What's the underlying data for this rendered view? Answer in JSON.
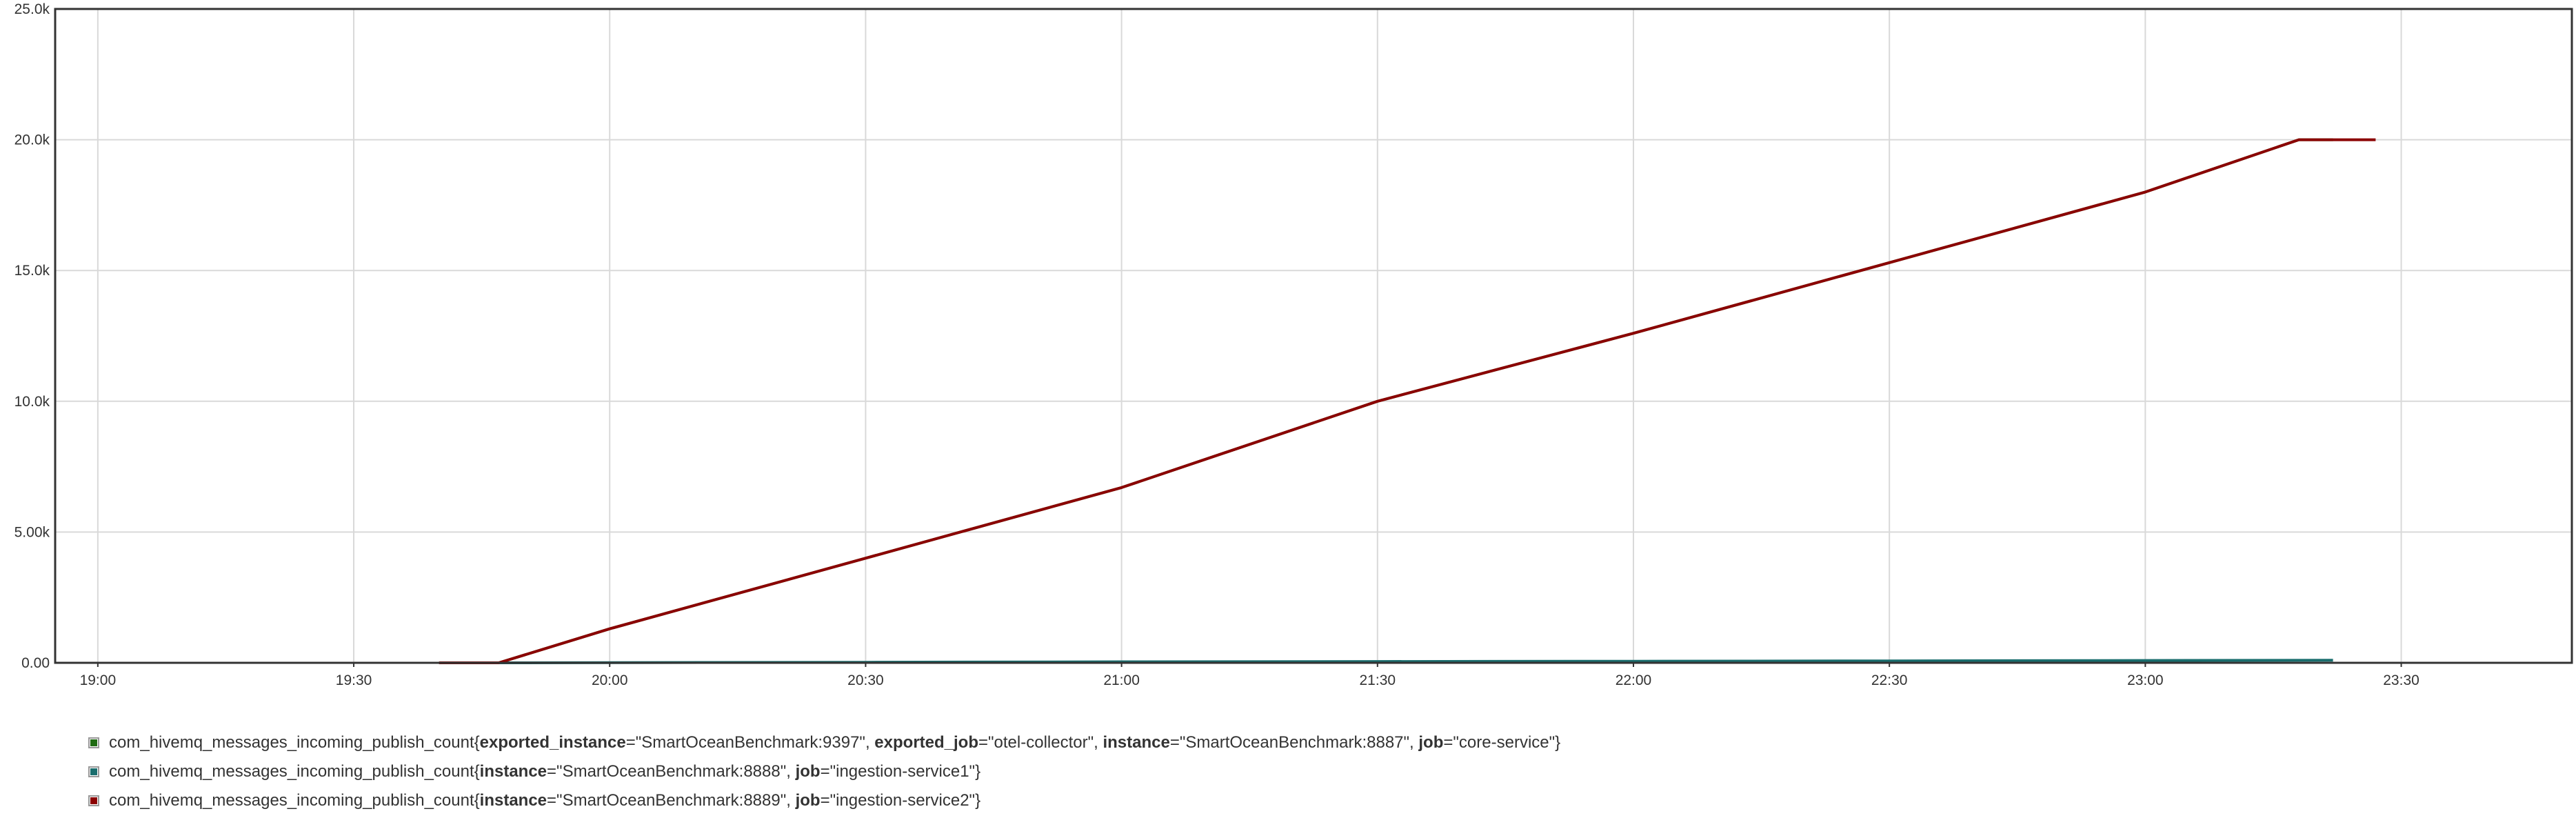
{
  "chart_data": {
    "type": "line",
    "x_ticks": [
      "19:00",
      "19:30",
      "20:00",
      "20:30",
      "21:00",
      "21:30",
      "22:00",
      "22:30",
      "23:00",
      "23:30"
    ],
    "y_ticks": [
      "0.00",
      "5.00k",
      "10.0k",
      "15.0k",
      "20.0k",
      "25.0k"
    ],
    "xlim": [
      "18:55",
      "23:50"
    ],
    "ylim": [
      0,
      25000
    ],
    "grid": true,
    "legend_position": "bottom-left",
    "series": [
      {
        "metric": "com_hivemq_messages_incoming_publish_count",
        "labels": [
          {
            "key": "exported_instance",
            "value": "SmartOceanBenchmark:9397"
          },
          {
            "key": "exported_job",
            "value": "otel-collector"
          },
          {
            "key": "instance",
            "value": "SmartOceanBenchmark:8887"
          },
          {
            "key": "job",
            "value": "core-service"
          }
        ],
        "color": "#1f6b12",
        "points": [
          [
            "19:40",
            0
          ],
          [
            "19:47",
            0
          ],
          [
            "20:00",
            1300
          ],
          [
            "20:30",
            4000
          ],
          [
            "21:00",
            6700
          ],
          [
            "21:30",
            10000
          ],
          [
            "22:00",
            12600
          ],
          [
            "22:30",
            15300
          ],
          [
            "23:00",
            18000
          ],
          [
            "23:18",
            20000
          ],
          [
            "23:22",
            20000
          ]
        ]
      },
      {
        "metric": "com_hivemq_messages_incoming_publish_count",
        "labels": [
          {
            "key": "instance",
            "value": "SmartOceanBenchmark:8888"
          },
          {
            "key": "job",
            "value": "ingestion-service1"
          }
        ],
        "color": "#1a6e6e",
        "points": [
          [
            "19:47",
            0
          ],
          [
            "20:30",
            20
          ],
          [
            "21:00",
            40
          ],
          [
            "21:30",
            50
          ],
          [
            "22:00",
            60
          ],
          [
            "22:30",
            75
          ],
          [
            "23:00",
            90
          ],
          [
            "23:22",
            100
          ]
        ]
      },
      {
        "metric": "com_hivemq_messages_incoming_publish_count",
        "labels": [
          {
            "key": "instance",
            "value": "SmartOceanBenchmark:8889"
          },
          {
            "key": "job",
            "value": "ingestion-service2"
          }
        ],
        "color": "#8b0000",
        "points": [
          [
            "19:40",
            0
          ],
          [
            "19:47",
            0
          ],
          [
            "20:00",
            1300
          ],
          [
            "20:30",
            4000
          ],
          [
            "21:00",
            6700
          ],
          [
            "21:30",
            10000
          ],
          [
            "22:00",
            12600
          ],
          [
            "22:30",
            15300
          ],
          [
            "23:00",
            18000
          ],
          [
            "23:18",
            20000
          ],
          [
            "23:27",
            20000
          ]
        ]
      }
    ]
  }
}
